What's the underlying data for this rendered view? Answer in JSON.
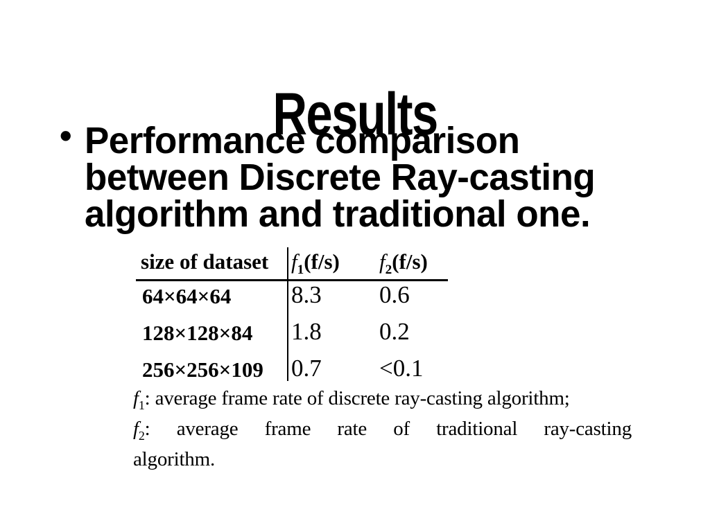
{
  "slide": {
    "background": "#ffffff",
    "text_color": "#000000",
    "title": "Results",
    "bullet": {
      "marker": "•",
      "lines": [
        "Performance comparison",
        "between Discrete Ray-casting",
        "algorithm and traditional one."
      ]
    },
    "table": {
      "header": {
        "size_col": "size of dataset",
        "f1": {
          "symbol": "f",
          "sub": "1",
          "unit": "(f/s)"
        },
        "f2": {
          "symbol": "f",
          "sub": "2",
          "unit": "(f/s)"
        }
      },
      "rows": [
        {
          "size": "64×64×64",
          "f1": "8.3",
          "f2": "0.6"
        },
        {
          "size": "128×128×84",
          "f1": "1.8",
          "f2": "0.2"
        },
        {
          "size": "256×256×109",
          "f1": "0.7",
          "f2": "<0.1"
        }
      ]
    },
    "footnotes": {
      "f1": {
        "symbol": "f",
        "sub": "1",
        "text": ": average frame rate of discrete ray-casting algorithm;"
      },
      "f2": {
        "symbol": "f",
        "sub": "2",
        "text_justified": ": average frame rate of traditional ray-casting",
        "text_last_line": "algorithm."
      }
    }
  }
}
